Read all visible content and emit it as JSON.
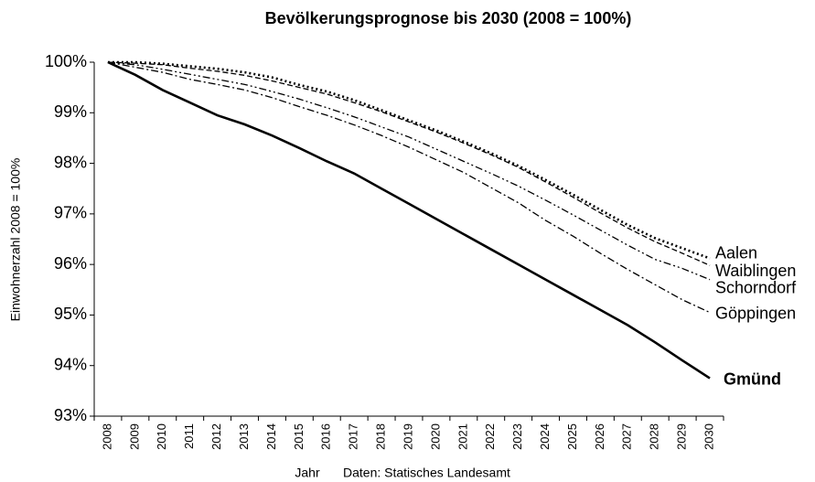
{
  "chart_data": {
    "type": "line",
    "title": "Bevölkerungsprognose bis 2030 (2008 = 100%)",
    "y_label": "Einwohnerzahl 2008 = 100%",
    "x_label": "Jahr",
    "source": "Daten: Statisches Landesamt",
    "categories": [
      "2008",
      "2009",
      "2010",
      "2011",
      "2012",
      "2013",
      "2014",
      "2015",
      "2016",
      "2017",
      "2018",
      "2019",
      "2020",
      "2021",
      "2022",
      "2023",
      "2024",
      "2025",
      "2026",
      "2027",
      "2028",
      "2029",
      "2030"
    ],
    "ylim": [
      93,
      100
    ],
    "yticks": [
      {
        "value": 93,
        "label": "93%"
      },
      {
        "value": 94,
        "label": "94%"
      },
      {
        "value": 95,
        "label": "95%"
      },
      {
        "value": 96,
        "label": "96%"
      },
      {
        "value": 97,
        "label": "97%"
      },
      {
        "value": 98,
        "label": "98%"
      },
      {
        "value": 99,
        "label": "99%"
      },
      {
        "value": 100,
        "label": "100%"
      }
    ],
    "series": [
      {
        "name": "Aalen",
        "color": "#000000",
        "dash": "dotted",
        "values": [
          100,
          100,
          99.97,
          99.92,
          99.87,
          99.8,
          99.7,
          99.55,
          99.42,
          99.25,
          99.05,
          98.85,
          98.65,
          98.43,
          98.2,
          97.95,
          97.67,
          97.38,
          97.08,
          96.78,
          96.52,
          96.32,
          96.12
        ]
      },
      {
        "name": "Waiblingen",
        "color": "#000000",
        "dash": "dashed",
        "values": [
          100,
          99.98,
          99.95,
          99.88,
          99.82,
          99.74,
          99.63,
          99.5,
          99.37,
          99.2,
          99.02,
          98.82,
          98.62,
          98.4,
          98.17,
          97.92,
          97.63,
          97.33,
          97.02,
          96.72,
          96.45,
          96.22,
          95.98
        ]
      },
      {
        "name": "Schorndorf",
        "color": "#000000",
        "dash": "dashdotdot",
        "values": [
          100,
          99.95,
          99.86,
          99.76,
          99.66,
          99.56,
          99.42,
          99.27,
          99.1,
          98.92,
          98.72,
          98.52,
          98.28,
          98.04,
          97.8,
          97.55,
          97.27,
          96.98,
          96.68,
          96.38,
          96.1,
          95.92,
          95.7
        ]
      },
      {
        "name": "Göppingen",
        "color": "#000000",
        "dash": "dashdot",
        "values": [
          100,
          99.9,
          99.8,
          99.66,
          99.56,
          99.45,
          99.3,
          99.12,
          98.95,
          98.76,
          98.55,
          98.32,
          98.07,
          97.82,
          97.52,
          97.22,
          96.87,
          96.56,
          96.22,
          95.9,
          95.6,
          95.3,
          95.05
        ]
      },
      {
        "name": "Gmünd",
        "color": "#000000",
        "dash": "solid",
        "bold": true,
        "values": [
          100,
          99.75,
          99.45,
          99.2,
          98.95,
          98.77,
          98.55,
          98.3,
          98.04,
          97.8,
          97.5,
          97.2,
          96.9,
          96.6,
          96.3,
          96.0,
          95.7,
          95.4,
          95.1,
          94.8,
          94.46,
          94.1,
          93.75
        ]
      }
    ]
  }
}
